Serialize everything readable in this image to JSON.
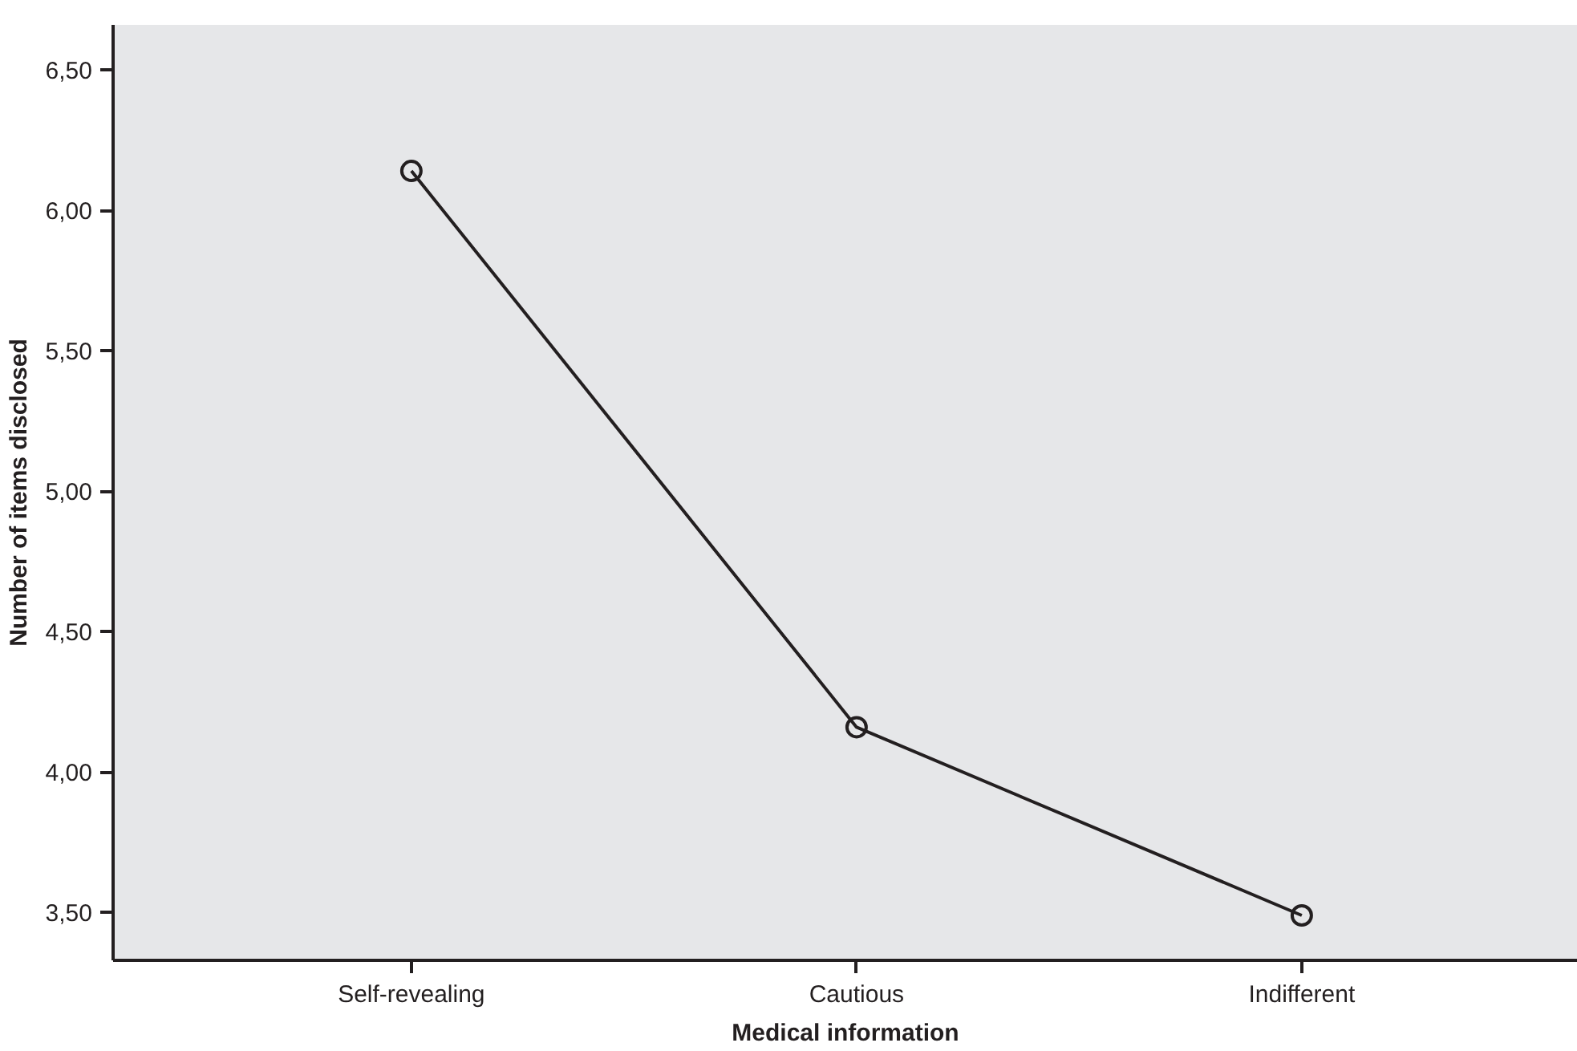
{
  "chart_data": {
    "type": "line",
    "xlabel": "Medical information",
    "ylabel": "Number of items disclosed",
    "categories": [
      "Self-revealing",
      "Cautious",
      "Indifferent"
    ],
    "series": [
      {
        "color": "#231f20",
        "values": [
          6.14,
          4.16,
          3.49
        ]
      }
    ],
    "ylim": [
      3.33,
      6.66
    ],
    "yticks": [
      {
        "value": 3.5,
        "label": "3,50"
      },
      {
        "value": 4.0,
        "label": "4,00"
      },
      {
        "value": 4.5,
        "label": "4,50"
      },
      {
        "value": 5.0,
        "label": "5,00"
      },
      {
        "value": 5.5,
        "label": "5,50"
      },
      {
        "value": 6.0,
        "label": "6,00"
      },
      {
        "value": 6.5,
        "label": "6,50"
      }
    ],
    "marker": "circle",
    "line_style": "solid"
  }
}
